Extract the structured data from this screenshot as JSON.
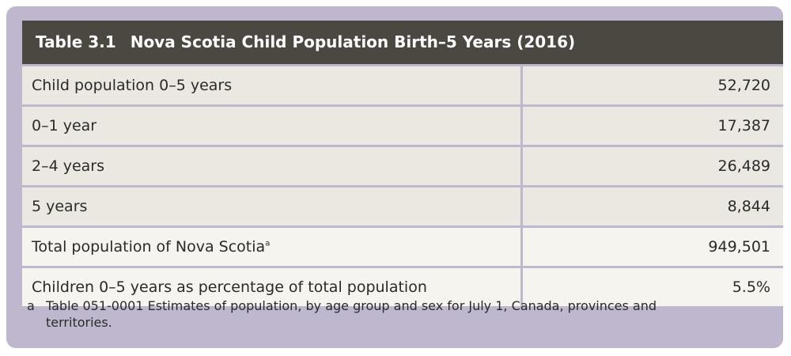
{
  "table": {
    "number": "Table 3.1",
    "title": "Nova Scotia Child Population Birth–5 Years (2016)",
    "rows": [
      {
        "label": "Child population 0–5 years",
        "value": "52,720",
        "footnote": ""
      },
      {
        "label": "0–1 year",
        "value": "17,387",
        "footnote": ""
      },
      {
        "label": "2–4 years",
        "value": "26,489",
        "footnote": ""
      },
      {
        "label": "5 years",
        "value": "8,844",
        "footnote": ""
      },
      {
        "label": "Total population of Nova Scotia",
        "value": "949,501",
        "footnote": "a"
      },
      {
        "label": "Children 0–5 years as percentage of total population",
        "value": "5.5%",
        "footnote": ""
      }
    ]
  },
  "footnote": {
    "mark": "a",
    "text": "Table 051-0001 Estimates of population, by age group and sex for July 1, Canada, provinces and territories."
  },
  "colors": {
    "panel": "#bfb7ce",
    "title_bar": "#4b4841",
    "row_shade": "#ebe8e1",
    "row_light": "#f6f4ef"
  }
}
